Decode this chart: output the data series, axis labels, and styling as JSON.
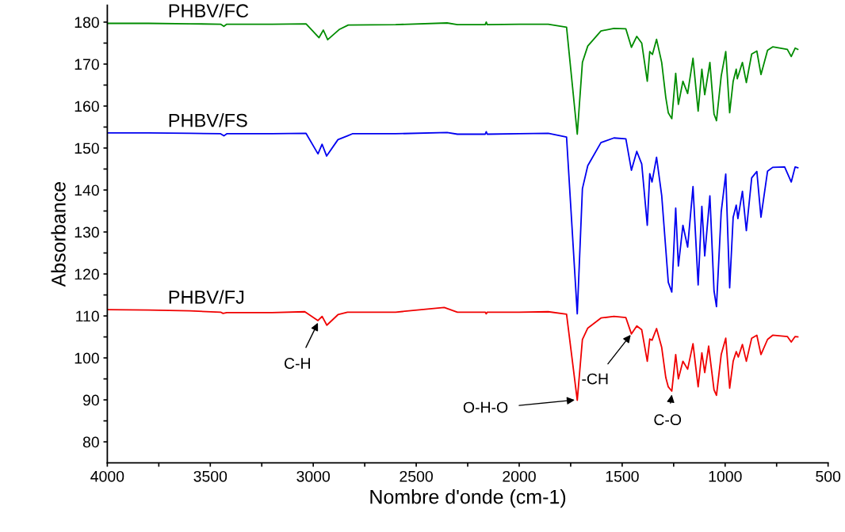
{
  "chart_data": {
    "type": "line",
    "xlabel": "Nombre d'onde (cm-1)",
    "ylabel": "Absorbance",
    "xlim": [
      4000,
      500
    ],
    "ylim": [
      75,
      184
    ],
    "xticks": [
      4000,
      {
        "value": 3750,
        "label": null
      },
      3500,
      {
        "value": 3250,
        "label": null
      },
      3000,
      {
        "value": 2750,
        "label": null
      },
      2500,
      {
        "value": 2250,
        "label": null
      },
      2000,
      {
        "value": 1750,
        "label": null
      },
      1500,
      {
        "value": 1250,
        "label": null
      },
      1000,
      {
        "value": 750,
        "label": null
      },
      500
    ],
    "yticks": [
      80,
      {
        "value": 85,
        "label": null
      },
      90,
      {
        "value": 95,
        "label": null
      },
      100,
      {
        "value": 105,
        "label": null
      },
      110,
      {
        "value": 115,
        "label": null
      },
      120,
      {
        "value": 125,
        "label": null
      },
      130,
      {
        "value": 135,
        "label": null
      },
      140,
      {
        "value": 145,
        "label": null
      },
      150,
      {
        "value": 155,
        "label": null
      },
      160,
      {
        "value": 165,
        "label": null
      },
      170,
      {
        "value": 175,
        "label": null
      },
      180
    ],
    "grid": false,
    "marker": "none",
    "line_style": "solid",
    "series": [
      {
        "name": "PHBV/FC",
        "color": "#008c00",
        "x": [
          4000,
          3800,
          3600,
          3450,
          3434,
          3420,
          3200,
          3035,
          2972,
          2951,
          2930,
          2872,
          2830,
          2600,
          2350,
          2300,
          2165,
          2160,
          2155,
          2000,
          1859,
          1770,
          1718,
          1693,
          1667,
          1603,
          1540,
          1482,
          1455,
          1429,
          1405,
          1378,
          1366,
          1353,
          1333,
          1308,
          1288,
          1276,
          1259,
          1240,
          1227,
          1205,
          1182,
          1156,
          1131,
          1113,
          1099,
          1074,
          1054,
          1042,
          1019,
          997,
          978,
          961,
          946,
          941,
          916,
          897,
          871,
          846,
          826,
          794,
          769,
          698,
          679,
          660,
          647
        ],
        "values": [
          179.7,
          179.7,
          179.6,
          179.5,
          179.0,
          179.5,
          179.5,
          179.6,
          176.3,
          178.1,
          175.8,
          178.3,
          179.3,
          179.4,
          179.8,
          179.4,
          179.4,
          180.0,
          179.4,
          179.5,
          179.5,
          178.8,
          153.3,
          170.4,
          174.3,
          177.9,
          178.5,
          178.4,
          174.0,
          176.6,
          175.0,
          165.9,
          173.0,
          172.3,
          175.9,
          170.4,
          162.0,
          158.4,
          157.0,
          167.8,
          160.4,
          165.9,
          163.0,
          171.4,
          158.8,
          168.8,
          162.7,
          170.4,
          158.1,
          156.5,
          167.2,
          173.0,
          158.4,
          165.9,
          168.8,
          166.5,
          170.4,
          165.6,
          172.4,
          173.1,
          167.5,
          173.3,
          174.1,
          173.5,
          171.8,
          173.8,
          173.5
        ]
      },
      {
        "name": "PHBV/FS",
        "color": "#0000f0",
        "x": [
          4000,
          3800,
          3600,
          3450,
          3434,
          3420,
          3200,
          3035,
          2977,
          2957,
          2935,
          2880,
          2834,
          2810,
          2600,
          2350,
          2300,
          2165,
          2160,
          2155,
          2000,
          1859,
          1770,
          1718,
          1693,
          1667,
          1603,
          1540,
          1482,
          1455,
          1429,
          1405,
          1378,
          1366,
          1355,
          1333,
          1308,
          1288,
          1276,
          1259,
          1240,
          1227,
          1205,
          1182,
          1156,
          1131,
          1113,
          1099,
          1074,
          1054,
          1042,
          1019,
          997,
          978,
          961,
          946,
          938,
          916,
          897,
          871,
          846,
          826,
          794,
          769,
          711,
          679,
          660,
          647
        ],
        "values": [
          153.6,
          153.6,
          153.5,
          153.4,
          152.9,
          153.4,
          153.4,
          153.5,
          148.6,
          150.9,
          148.1,
          152.0,
          152.9,
          153.4,
          153.4,
          153.7,
          153.3,
          153.3,
          153.9,
          153.3,
          153.4,
          153.5,
          152.6,
          110.5,
          140.3,
          145.8,
          151.3,
          152.4,
          152.2,
          144.7,
          149.2,
          146.2,
          131.6,
          143.9,
          141.9,
          147.8,
          138.7,
          125.8,
          118.0,
          115.7,
          135.7,
          121.9,
          131.6,
          126.4,
          140.8,
          117.4,
          136.1,
          124.3,
          138.6,
          116.0,
          112.2,
          134.8,
          143.8,
          116.7,
          133.5,
          136.4,
          133.2,
          139.7,
          130.3,
          142.9,
          144.4,
          133.5,
          144.5,
          145.4,
          145.5,
          141.9,
          145.5,
          145.3
        ]
      },
      {
        "name": "PHBV/FJ",
        "color": "#f00000",
        "x": [
          4000,
          3800,
          3600,
          3450,
          3438,
          3420,
          3200,
          3041,
          2977,
          2957,
          2934,
          2880,
          2834,
          2600,
          2364,
          2300,
          2165,
          2160,
          2155,
          2000,
          1859,
          1770,
          1718,
          1693,
          1667,
          1603,
          1540,
          1482,
          1455,
          1429,
          1405,
          1378,
          1366,
          1355,
          1333,
          1308,
          1288,
          1276,
          1259,
          1240,
          1227,
          1205,
          1182,
          1156,
          1131,
          1113,
          1099,
          1080,
          1054,
          1042,
          1019,
          997,
          978,
          961,
          946,
          936,
          916,
          897,
          871,
          846,
          826,
          794,
          769,
          698,
          679,
          660,
          647
        ],
        "values": [
          111.5,
          111.4,
          111.2,
          110.9,
          110.6,
          110.8,
          110.8,
          111.0,
          108.9,
          109.9,
          107.8,
          110.3,
          110.9,
          110.9,
          112.0,
          110.9,
          110.9,
          110.5,
          110.9,
          110.9,
          111.0,
          110.4,
          89.9,
          104.4,
          107.1,
          109.5,
          109.9,
          109.6,
          105.7,
          107.6,
          106.7,
          99.2,
          104.5,
          104.2,
          107.0,
          102.5,
          95.3,
          93.1,
          92.1,
          100.8,
          95.0,
          99.2,
          97.3,
          103.4,
          93.1,
          101.2,
          96.5,
          102.8,
          92.4,
          91.1,
          100.8,
          104.7,
          92.8,
          99.2,
          101.5,
          100.2,
          103.2,
          99.2,
          104.7,
          105.4,
          100.8,
          104.4,
          105.4,
          105.1,
          103.8,
          105.1,
          105.0
        ]
      }
    ],
    "annotations": [
      {
        "text": "C-H",
        "x": 2975,
        "y": 108.6
      },
      {
        "text": "O-H-O",
        "x": 1725,
        "y": 90
      },
      {
        "text": "-CH",
        "x": 1455,
        "y": 105.7
      },
      {
        "text": "C-O",
        "x": 1258,
        "y": 91.5
      }
    ]
  }
}
